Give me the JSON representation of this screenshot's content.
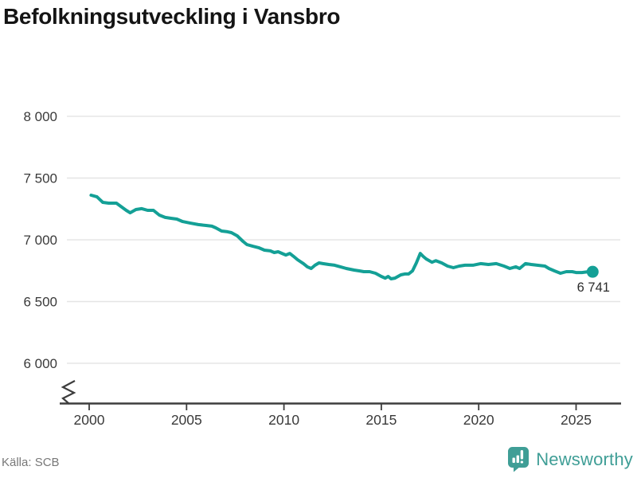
{
  "title": "Befolkningsutveckling i Vansbro",
  "chart_data": {
    "type": "line",
    "title": "Befolkningsutveckling i Vansbro",
    "xlabel": "",
    "ylabel": "",
    "grid": true,
    "axis_break": true,
    "xlim": [
      2000,
      2026
    ],
    "ylim": [
      6000,
      8000
    ],
    "xticks": {
      "values": [
        2000,
        2005,
        2010,
        2015,
        2020,
        2025
      ],
      "labels": [
        "2000",
        "2005",
        "2010",
        "2015",
        "2020",
        "2025"
      ]
    },
    "yticks": {
      "values": [
        8000,
        7500,
        7000,
        6500,
        6000
      ],
      "labels": [
        "8 000",
        "7 500",
        "7 000",
        "6 500",
        "6 000"
      ]
    },
    "series": [
      {
        "name": "Befolkning",
        "x": [
          2000.1,
          2000.4,
          2000.7,
          2001.0,
          2001.4,
          2001.9,
          2002.1,
          2002.4,
          2002.7,
          2003.0,
          2003.3,
          2003.6,
          2003.9,
          2004.2,
          2004.5,
          2004.8,
          2005.2,
          2005.6,
          2006.0,
          2006.3,
          2006.5,
          2006.8,
          2007.1,
          2007.3,
          2007.6,
          2007.9,
          2008.1,
          2008.4,
          2008.7,
          2009.0,
          2009.3,
          2009.5,
          2009.7,
          2009.9,
          2010.1,
          2010.3,
          2010.5,
          2010.7,
          2011.0,
          2011.2,
          2011.4,
          2011.6,
          2011.8,
          2012.0,
          2012.3,
          2012.6,
          2012.9,
          2013.2,
          2013.6,
          2013.9,
          2014.1,
          2014.4,
          2014.7,
          2015.0,
          2015.2,
          2015.35,
          2015.5,
          2015.7,
          2016.0,
          2016.2,
          2016.4,
          2016.6,
          2016.8,
          2017.0,
          2017.15,
          2017.3,
          2017.6,
          2017.8,
          2018.1,
          2018.4,
          2018.7,
          2019.0,
          2019.3,
          2019.7,
          2020.1,
          2020.5,
          2020.9,
          2021.3,
          2021.6,
          2021.9,
          2022.1,
          2022.4,
          2022.7,
          2023.0,
          2023.4,
          2023.6,
          2023.9,
          2024.2,
          2024.5,
          2024.8,
          2025.0,
          2025.3,
          2025.6,
          2025.85
        ],
        "y": [
          7361,
          7348,
          7303,
          7297,
          7297,
          7239,
          7219,
          7245,
          7252,
          7239,
          7239,
          7200,
          7181,
          7174,
          7168,
          7148,
          7135,
          7123,
          7116,
          7110,
          7097,
          7071,
          7065,
          7058,
          7032,
          6987,
          6961,
          6948,
          6936,
          6916,
          6910,
          6897,
          6903,
          6890,
          6877,
          6890,
          6865,
          6839,
          6807,
          6781,
          6768,
          6794,
          6813,
          6807,
          6800,
          6794,
          6781,
          6768,
          6755,
          6748,
          6742,
          6742,
          6729,
          6703,
          6690,
          6703,
          6684,
          6690,
          6716,
          6723,
          6723,
          6748,
          6813,
          6890,
          6865,
          6845,
          6818,
          6831,
          6813,
          6787,
          6774,
          6787,
          6794,
          6794,
          6807,
          6800,
          6807,
          6787,
          6768,
          6781,
          6768,
          6807,
          6800,
          6794,
          6787,
          6768,
          6748,
          6729,
          6742,
          6742,
          6735,
          6735,
          6741,
          6741
        ]
      }
    ],
    "end_label": "6 741",
    "end_value": 6741,
    "line_color": "#14a096"
  },
  "colors": {
    "line": "#14a096",
    "axis": "#3d3d3d",
    "grid": "#e5e5e5",
    "tick_text": "#3a3a3a",
    "annotation_text": "#2b2b2b",
    "title_text": "#141414",
    "source_text": "#787878",
    "brand": "#3f9e96"
  },
  "footer": {
    "source": "Källa: SCB",
    "brand": "Newsworthy"
  }
}
